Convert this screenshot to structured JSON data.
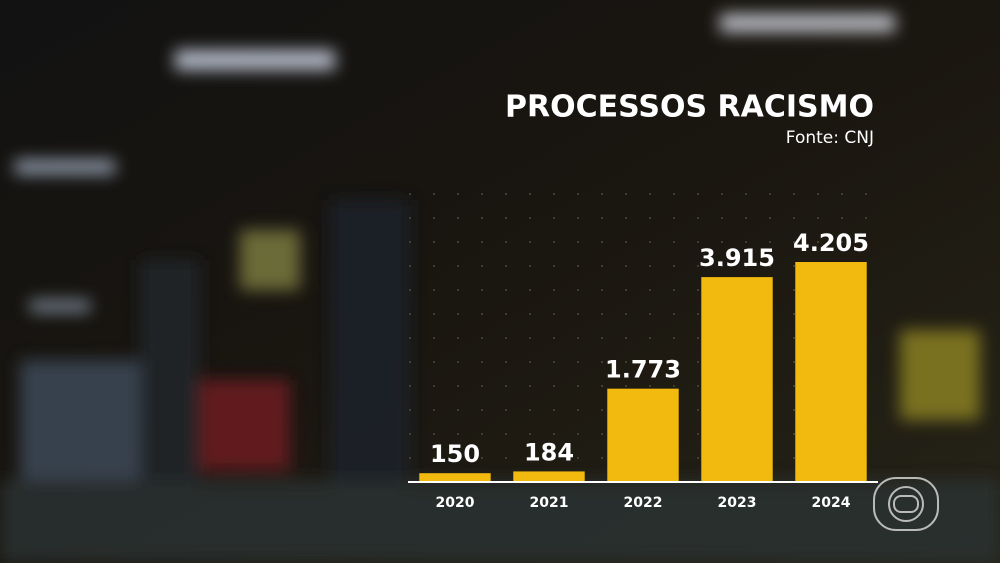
{
  "chart_data": {
    "type": "bar",
    "title": "PROCESSOS RACISMO",
    "subtitle": "Fonte: CNJ",
    "categories": [
      "2020",
      "2021",
      "2022",
      "2023",
      "2024"
    ],
    "values": [
      150,
      184,
      1773,
      3915,
      4205
    ],
    "value_labels": [
      "150",
      "184",
      "1.773",
      "3.915",
      "4.205"
    ],
    "color": "#f2b90f"
  }
}
